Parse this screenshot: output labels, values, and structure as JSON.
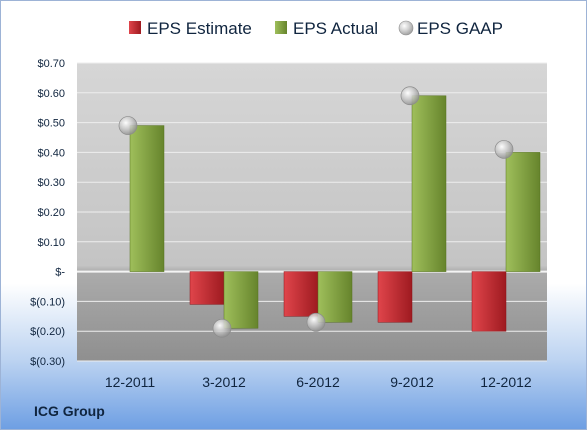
{
  "company": "ICG Group",
  "chart_data": {
    "type": "bar",
    "categories": [
      "12-2011",
      "3-2012",
      "6-2012",
      "9-2012",
      "12-2012"
    ],
    "series": [
      {
        "name": "EPS Estimate",
        "marker": "bar",
        "color": "#c0272d",
        "values": [
          null,
          -0.11,
          -0.15,
          -0.17,
          -0.2
        ]
      },
      {
        "name": "EPS Actual",
        "marker": "bar",
        "color": "#7a9a3a",
        "values": [
          0.49,
          -0.19,
          -0.17,
          0.59,
          0.4
        ]
      },
      {
        "name": "EPS GAAP",
        "marker": "sphere",
        "color": "#b0b0b0",
        "values": [
          0.49,
          -0.19,
          -0.17,
          0.59,
          0.41
        ]
      }
    ],
    "y_ticks": [
      {
        "value": 0.7,
        "label": "$0.70"
      },
      {
        "value": 0.6,
        "label": "$0.60"
      },
      {
        "value": 0.5,
        "label": "$0.50"
      },
      {
        "value": 0.4,
        "label": "$0.40"
      },
      {
        "value": 0.3,
        "label": "$0.30"
      },
      {
        "value": 0.2,
        "label": "$0.20"
      },
      {
        "value": 0.1,
        "label": "$0.10"
      },
      {
        "value": 0.0,
        "label": "$-"
      },
      {
        "value": -0.1,
        "label": "$(0.10)"
      },
      {
        "value": -0.2,
        "label": "$(0.20)"
      },
      {
        "value": -0.3,
        "label": "$(0.30)"
      }
    ],
    "ylim": [
      -0.3,
      0.7
    ],
    "grid": true,
    "legend_position": "top"
  }
}
